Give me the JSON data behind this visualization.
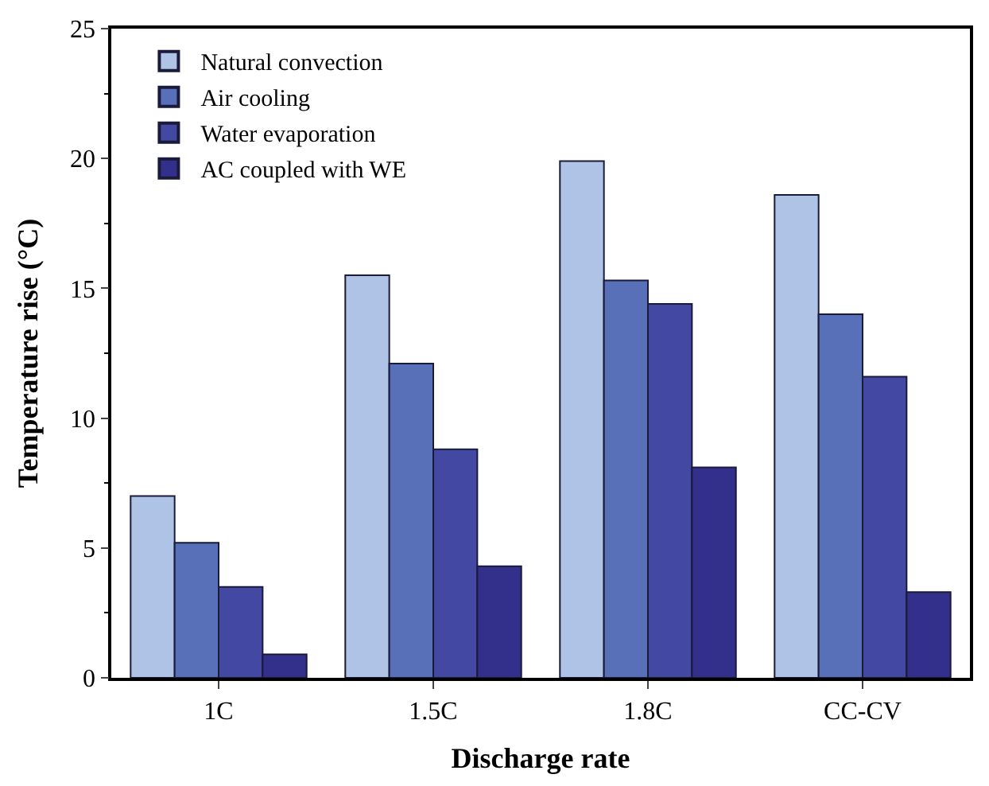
{
  "chart_data": {
    "type": "bar",
    "xlabel": "Discharge rate",
    "ylabel": "Temperature rise (°C)",
    "categories": [
      "1C",
      "1.5C",
      "1.8C",
      "CC-CV"
    ],
    "series": [
      {
        "name": "Natural convection",
        "color": "#aec3e6",
        "values": [
          7.0,
          15.5,
          19.9,
          18.6
        ]
      },
      {
        "name": "Air cooling",
        "color": "#5770b8",
        "values": [
          5.2,
          12.1,
          15.3,
          14.0
        ]
      },
      {
        "name": "Water evaporation",
        "color": "#4349a2",
        "values": [
          3.5,
          8.8,
          14.4,
          11.6
        ]
      },
      {
        "name": "AC coupled with WE",
        "color": "#32308a",
        "values": [
          0.9,
          4.3,
          8.1,
          3.3
        ]
      }
    ],
    "ylim": [
      0,
      25
    ],
    "yticks": [
      0,
      5,
      10,
      15,
      20,
      25
    ],
    "legend": "top left"
  }
}
